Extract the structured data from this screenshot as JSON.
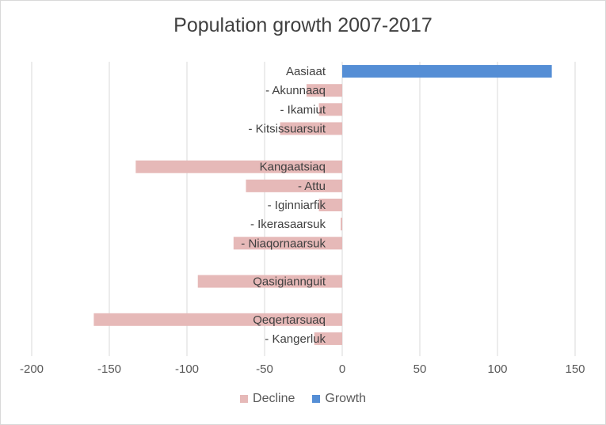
{
  "chart_data": {
    "type": "bar",
    "orientation": "horizontal",
    "title": "Population growth 2007-2017",
    "categories": [
      "Aasiaat",
      "- Akunnaaq",
      "- Ikamiut",
      "- Kitsissuarsuit",
      "",
      "Kangaatsiaq",
      "- Attu",
      "- Iginniarfik",
      "- Ikerasaarsuk",
      "- Niaqornaarsuk",
      "",
      "Qasigiannguit",
      "",
      "Qeqertarsuaq",
      "- Kangerluk"
    ],
    "values": [
      135,
      -23,
      -15,
      -40,
      null,
      -133,
      -62,
      -15,
      -1,
      -70,
      null,
      -93,
      null,
      -160,
      -18
    ],
    "series": [
      {
        "name": "Decline",
        "color": "#e6b9b8"
      },
      {
        "name": "Growth",
        "color": "#558ed5"
      }
    ],
    "xlim": [
      -200,
      150
    ],
    "xticks": [
      -200,
      -150,
      -100,
      -50,
      0,
      50,
      100,
      150
    ],
    "xlabel": "",
    "ylabel": "",
    "grid": true,
    "legend_position": "bottom"
  }
}
